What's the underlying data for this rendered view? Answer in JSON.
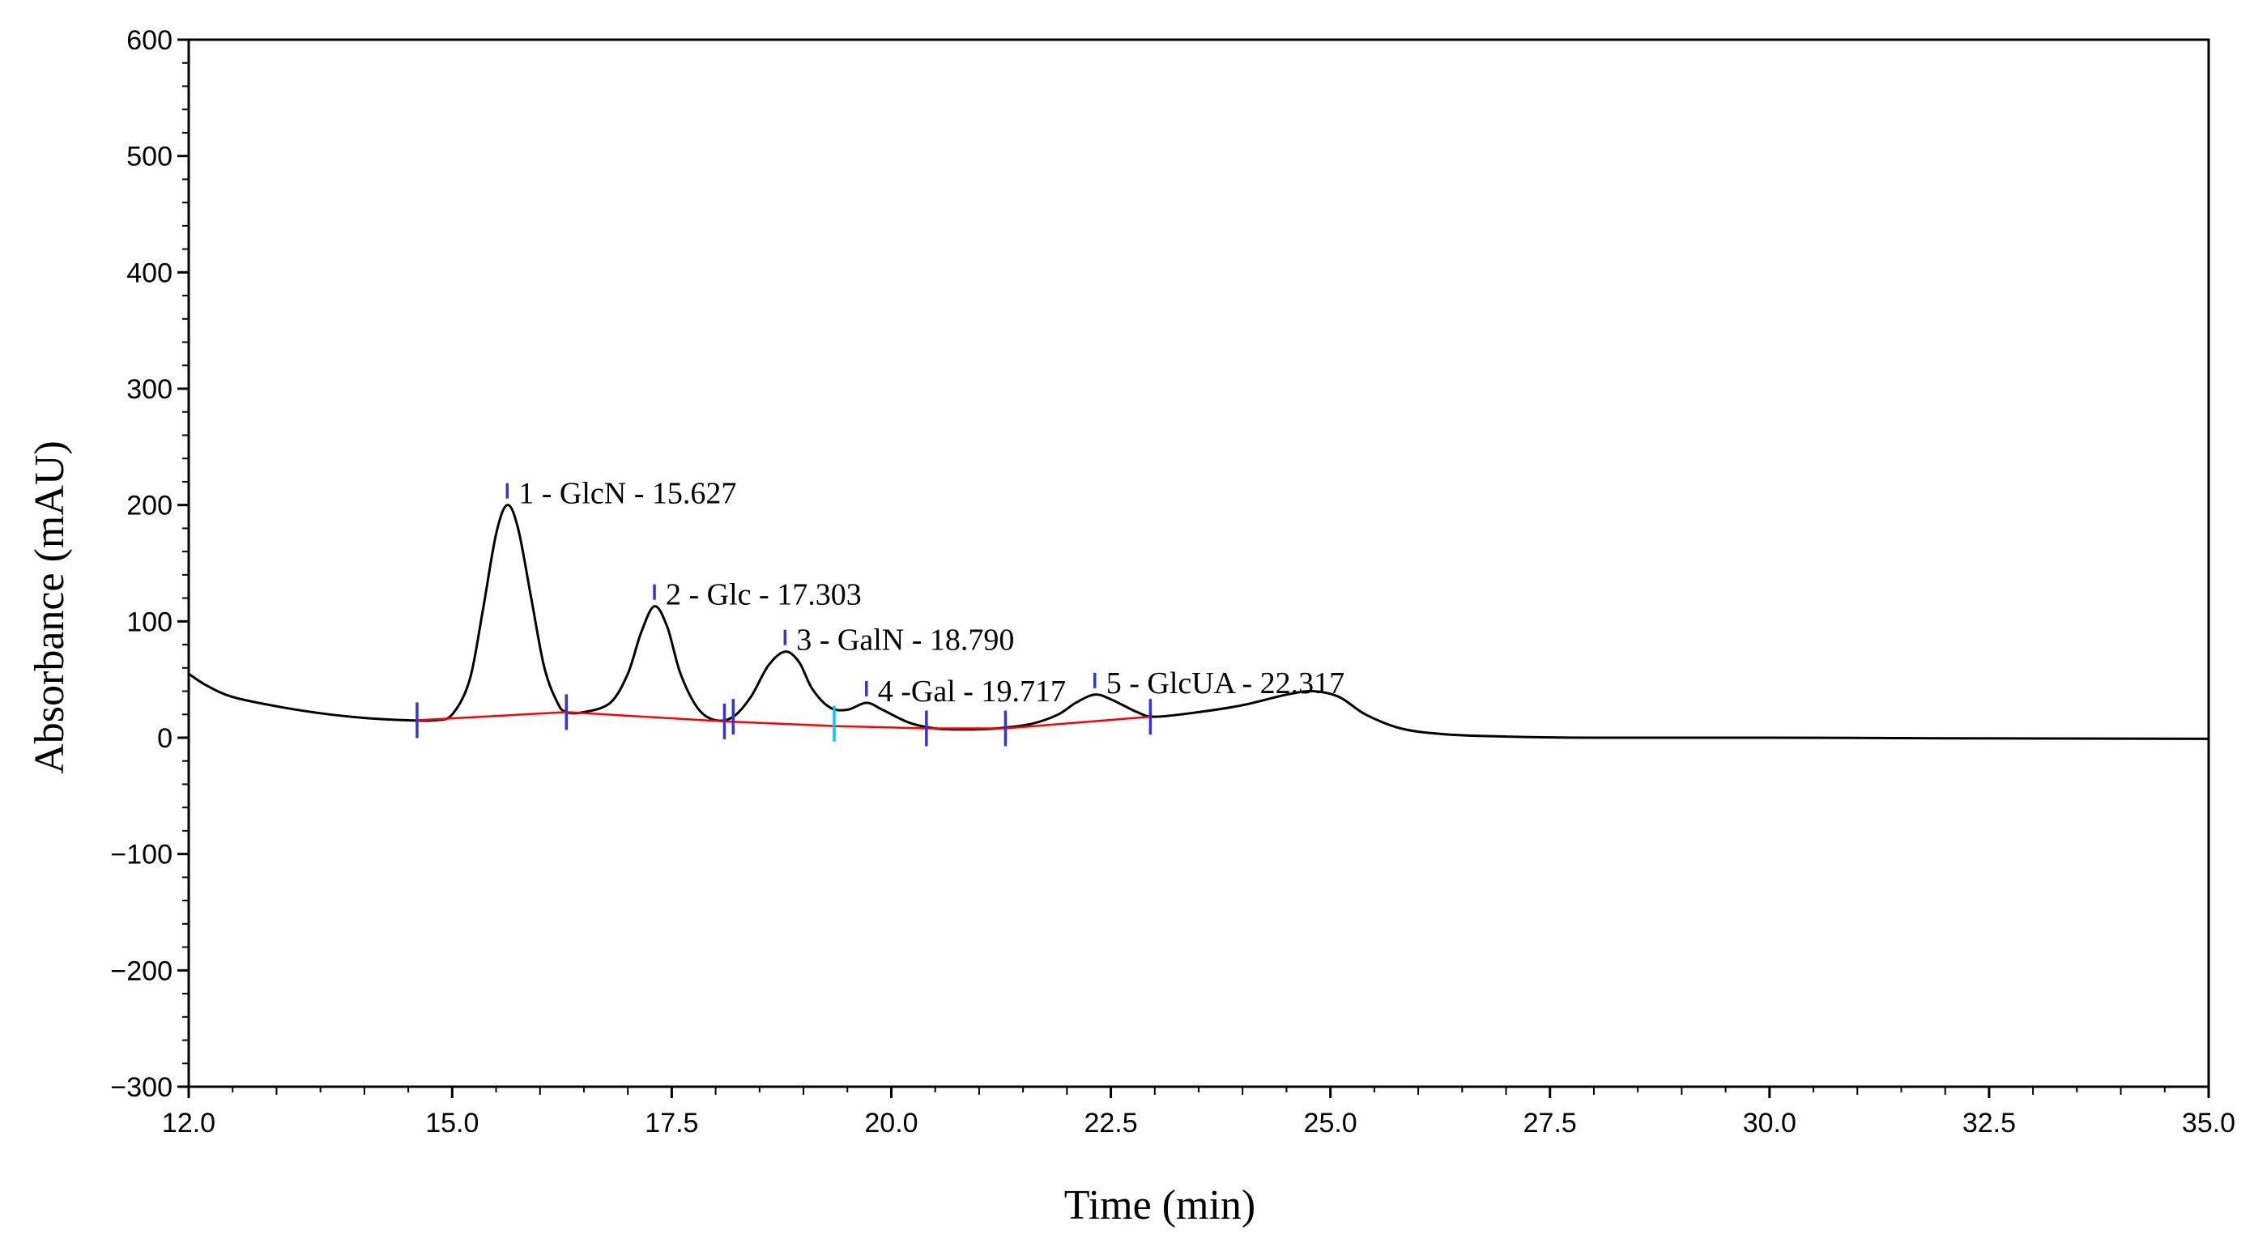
{
  "chart_data": {
    "type": "line",
    "title": "",
    "xlabel": "Time (min)",
    "ylabel": "Absorbance (mAU)",
    "xlim": [
      12.0,
      35.0
    ],
    "ylim": [
      -300,
      600
    ],
    "x_ticks": [
      12.0,
      15.0,
      17.5,
      20.0,
      22.5,
      25.0,
      27.5,
      30.0,
      32.5,
      35.0
    ],
    "x_tick_labels": [
      "12.0",
      "15.0",
      "17.5",
      "20.0",
      "22.5",
      "25.0",
      "27.5",
      "30.0",
      "32.5",
      "35.0"
    ],
    "y_ticks": [
      600,
      500,
      400,
      300,
      200,
      100,
      0,
      -100,
      -200,
      -300
    ],
    "y_tick_labels": [
      "600",
      "500",
      "400",
      "300",
      "200",
      "100",
      "0",
      "−100",
      "−200",
      "−300"
    ],
    "grid": false,
    "series": [
      {
        "color": "#000000",
        "points": [
          [
            12.0,
            55
          ],
          [
            12.2,
            45
          ],
          [
            12.5,
            35
          ],
          [
            13.0,
            27
          ],
          [
            13.5,
            21
          ],
          [
            14.0,
            17
          ],
          [
            14.5,
            15
          ],
          [
            14.8,
            15
          ],
          [
            15.0,
            20
          ],
          [
            15.2,
            50
          ],
          [
            15.35,
            110
          ],
          [
            15.5,
            175
          ],
          [
            15.627,
            200
          ],
          [
            15.75,
            180
          ],
          [
            15.9,
            120
          ],
          [
            16.05,
            60
          ],
          [
            16.2,
            30
          ],
          [
            16.3,
            22
          ],
          [
            16.5,
            22
          ],
          [
            16.8,
            30
          ],
          [
            17.0,
            55
          ],
          [
            17.15,
            90
          ],
          [
            17.303,
            113
          ],
          [
            17.45,
            95
          ],
          [
            17.6,
            55
          ],
          [
            17.8,
            25
          ],
          [
            18.0,
            15
          ],
          [
            18.2,
            18
          ],
          [
            18.4,
            35
          ],
          [
            18.6,
            62
          ],
          [
            18.79,
            74
          ],
          [
            18.95,
            65
          ],
          [
            19.1,
            42
          ],
          [
            19.3,
            26
          ],
          [
            19.5,
            24
          ],
          [
            19.717,
            30
          ],
          [
            19.9,
            24
          ],
          [
            20.2,
            13
          ],
          [
            20.5,
            8
          ],
          [
            20.8,
            7
          ],
          [
            21.2,
            8
          ],
          [
            21.6,
            12
          ],
          [
            21.9,
            20
          ],
          [
            22.1,
            30
          ],
          [
            22.317,
            37
          ],
          [
            22.5,
            33
          ],
          [
            22.8,
            22
          ],
          [
            23.0,
            18
          ],
          [
            23.5,
            22
          ],
          [
            24.0,
            28
          ],
          [
            24.5,
            37
          ],
          [
            24.8,
            40
          ],
          [
            25.1,
            35
          ],
          [
            25.4,
            20
          ],
          [
            25.8,
            8
          ],
          [
            26.3,
            3
          ],
          [
            27.0,
            1
          ],
          [
            28.0,
            0
          ],
          [
            30.0,
            0
          ],
          [
            32.0,
            -0.5
          ],
          [
            35.0,
            -1
          ]
        ]
      },
      {
        "color": "#ff0000",
        "points": [
          [
            14.6,
            15
          ],
          [
            16.3,
            22
          ],
          [
            18.1,
            14
          ],
          [
            19.35,
            10
          ],
          [
            20.4,
            8
          ],
          [
            21.3,
            8
          ],
          [
            22.95,
            18
          ]
        ]
      }
    ],
    "peaks": [
      {
        "label": "1 - GlcN - 15.627",
        "x": 15.627,
        "y": 200
      },
      {
        "label": "2 - Glc - 17.303",
        "x": 17.303,
        "y": 113
      },
      {
        "label": "3 - GalN - 18.790",
        "x": 18.79,
        "y": 74
      },
      {
        "label": "4 -Gal - 19.717",
        "x": 19.717,
        "y": 30
      },
      {
        "label": "5 - GlcUA - 22.317",
        "x": 22.317,
        "y": 37
      }
    ],
    "boundary_markers": [
      {
        "x": 14.6,
        "y": 15,
        "color": "#3333dd"
      },
      {
        "x": 16.3,
        "y": 22,
        "color": "#3333dd"
      },
      {
        "x": 18.1,
        "y": 14,
        "color": "#3333dd"
      },
      {
        "x": 18.2,
        "y": 18,
        "color": "#3333dd"
      },
      {
        "x": 19.35,
        "y": 12,
        "color": "#00c8ff"
      },
      {
        "x": 20.4,
        "y": 8,
        "color": "#3333dd"
      },
      {
        "x": 21.3,
        "y": 8,
        "color": "#3333dd"
      },
      {
        "x": 22.95,
        "y": 18,
        "color": "#3333dd"
      }
    ]
  }
}
